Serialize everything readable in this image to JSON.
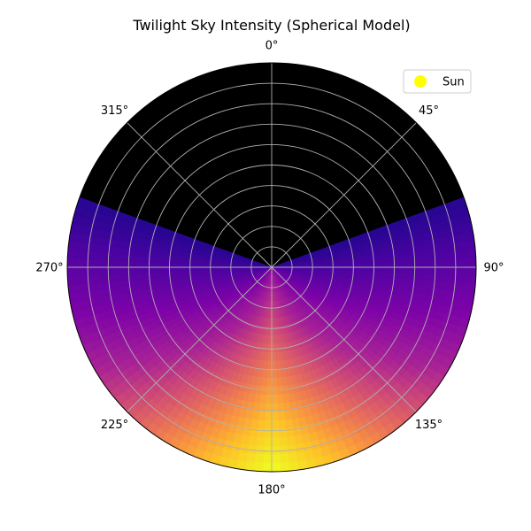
{
  "chart_data": {
    "type": "heatmap",
    "projection": "polar",
    "title": "Twilight Sky Intensity (Spherical Model)",
    "theta_direction": "clockwise",
    "theta_zero": "top",
    "theta_ticks": [
      0,
      45,
      90,
      135,
      180,
      225,
      270,
      315
    ],
    "theta_tick_labels": [
      "0°",
      "45°",
      "90°",
      "135°",
      "180°",
      "225°",
      "270°",
      "315°"
    ],
    "radial_gridlines": 9,
    "radial_tick_labels": [],
    "colormap": "plasma",
    "below_horizon_color": "#000000",
    "sun_azimuth": 180,
    "brightness_profile": {
      "dark_region_azimuth_range": [
        290,
        70
      ],
      "brightest_azimuth": 180,
      "brightest_at": "horizon"
    },
    "legend": {
      "placement": "top-right",
      "entries": [
        {
          "label": "Sun",
          "color": "#ffff00",
          "marker": "circle"
        }
      ]
    },
    "grid": true
  }
}
